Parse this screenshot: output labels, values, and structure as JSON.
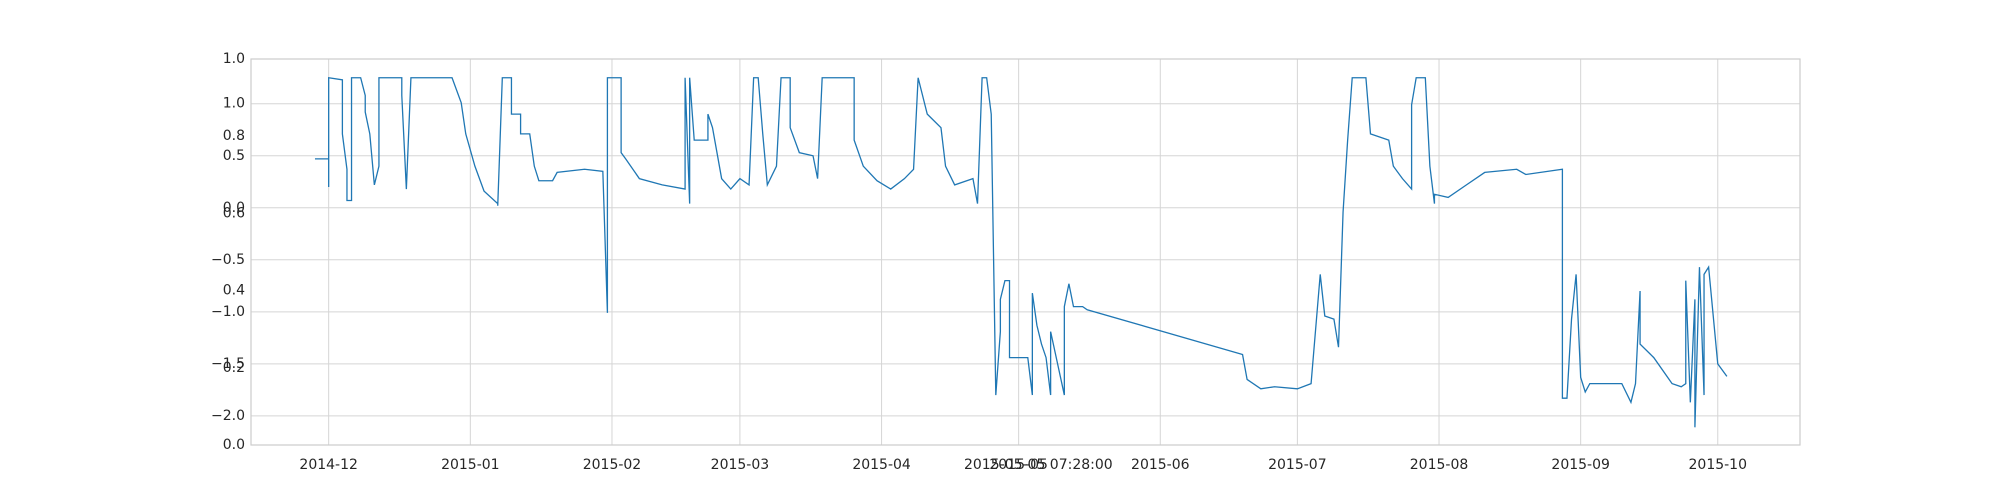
{
  "chart_data": [
    {
      "type": "line",
      "color": "#1f77b4",
      "grid": true,
      "xlim": [
        "2014-11-14",
        "2015-10-19"
      ],
      "xticks": [
        {
          "value": "2014-12-01",
          "label": "2014-12"
        },
        {
          "value": "2015-01-01",
          "label": "2015-01"
        },
        {
          "value": "2015-02-01",
          "label": "2015-02"
        },
        {
          "value": "2015-03-01",
          "label": "2015-03"
        },
        {
          "value": "2015-04-01",
          "label": "2015-04"
        },
        {
          "value": "2015-05-01",
          "label": "2015-05"
        },
        {
          "value": "2015-06-01",
          "label": "2015-06"
        },
        {
          "value": "2015-07-01",
          "label": "2015-07"
        },
        {
          "value": "2015-08-01",
          "label": "2015-08"
        },
        {
          "value": "2015-09-01",
          "label": "2015-09"
        },
        {
          "value": "2015-10-01",
          "label": "2015-10"
        }
      ],
      "ylim": [
        -2.28,
        1.43
      ],
      "yticks": [
        {
          "value": -2,
          "label": "−2.0"
        },
        {
          "value": -1.5,
          "label": "−1.5"
        },
        {
          "value": -1,
          "label": "−1.0"
        },
        {
          "value": -0.5,
          "label": "−0.5"
        },
        {
          "value": 0,
          "label": "0.0"
        },
        0.5,
        {
          "value": 1,
          "label": "1.0"
        }
      ],
      "x": [
        "2014-11-28",
        "2014-12-01",
        "2014-12-01",
        "2014-12-01",
        "2014-12-04",
        "2014-12-04",
        "2014-12-05",
        "2014-12-05",
        "2014-12-06",
        "2014-12-06",
        "2014-12-08",
        "2014-12-09",
        "2014-12-09",
        "2014-12-10",
        "2014-12-11",
        "2014-12-12",
        "2014-12-12",
        "2014-12-17",
        "2014-12-17",
        "2014-12-18",
        "2014-12-19",
        "2014-12-28",
        "2014-12-30",
        "2014-12-31",
        "2015-01-02",
        "2015-01-04",
        "2015-01-07",
        "2015-01-07",
        "2015-01-08",
        "2015-01-10",
        "2015-01-10",
        "2015-01-12",
        "2015-01-12",
        "2015-01-14",
        "2015-01-15",
        "2015-01-16",
        "2015-01-19",
        "2015-01-20",
        "2015-01-26",
        "2015-01-30",
        "2015-01-31",
        "2015-01-31",
        "2015-01-31",
        "2015-02-03",
        "2015-02-03",
        "2015-02-04",
        "2015-02-07",
        "2015-02-12",
        "2015-02-17",
        "2015-02-17",
        "2015-02-18",
        "2015-02-18",
        "2015-02-19",
        "2015-02-22",
        "2015-02-22",
        "2015-02-23",
        "2015-02-25",
        "2015-02-27",
        "2015-03-01",
        "2015-03-03",
        "2015-03-04",
        "2015-03-05",
        "2015-03-06",
        "2015-03-07",
        "2015-03-09",
        "2015-03-10",
        "2015-03-12",
        "2015-03-12",
        "2015-03-14",
        "2015-03-17",
        "2015-03-18",
        "2015-03-19",
        "2015-03-26",
        "2015-03-26",
        "2015-03-28",
        "2015-03-31",
        "2015-04-03",
        "2015-04-06",
        "2015-04-08",
        "2015-04-09",
        "2015-04-11",
        "2015-04-14",
        "2015-04-15",
        "2015-04-17",
        "2015-04-21",
        "2015-04-22",
        "2015-04-23",
        "2015-04-24",
        "2015-04-25",
        "2015-04-26",
        "2015-04-26",
        "2015-04-27",
        "2015-04-27",
        "2015-04-28",
        "2015-04-29",
        "2015-04-29",
        "2015-05-03",
        "2015-05-04",
        "2015-05-04",
        "2015-05-04",
        "2015-05-05",
        "2015-05-06",
        "2015-05-07",
        "2015-05-08",
        "2015-05-08",
        "2015-05-11",
        "2015-05-11",
        "2015-05-12",
        "2015-05-13",
        "2015-05-15",
        "2015-05-16",
        "2015-06-19",
        "2015-06-20",
        "2015-06-23",
        "2015-06-26",
        "2015-07-01",
        "2015-07-04",
        "2015-07-06",
        "2015-07-07",
        "2015-07-09",
        "2015-07-10",
        "2015-07-11",
        "2015-07-12",
        "2015-07-13",
        "2015-07-16",
        "2015-07-17",
        "2015-07-21",
        "2015-07-22",
        "2015-07-24",
        "2015-07-26",
        "2015-07-26",
        "2015-07-27",
        "2015-07-29",
        "2015-07-30",
        "2015-07-31",
        "2015-07-31",
        "2015-08-03",
        "2015-08-07",
        "2015-08-11",
        "2015-08-18",
        "2015-08-20",
        "2015-08-28",
        "2015-08-28",
        "2015-08-29",
        "2015-08-30",
        "2015-08-31",
        "2015-09-01",
        "2015-09-02",
        "2015-09-03",
        "2015-09-10",
        "2015-09-12",
        "2015-09-13",
        "2015-09-14",
        "2015-09-14",
        "2015-09-17",
        "2015-09-21",
        "2015-09-23",
        "2015-09-24",
        "2015-09-24",
        "2015-09-25",
        "2015-09-26",
        "2015-09-26",
        "2015-09-27",
        "2015-09-28",
        "2015-09-28",
        "2015-09-29",
        "2015-10-01",
        "2015-10-03"
      ],
      "values": [
        0.47,
        0.47,
        0.2,
        1.25,
        1.23,
        0.71,
        0.37,
        0.07,
        0.07,
        1.25,
        1.25,
        1.08,
        0.92,
        0.71,
        0.22,
        0.4,
        1.25,
        1.25,
        1.08,
        0.18,
        1.25,
        1.25,
        1.01,
        0.71,
        0.4,
        0.16,
        0.04,
        0.02,
        1.25,
        1.25,
        0.9,
        0.9,
        0.71,
        0.71,
        0.4,
        0.26,
        0.26,
        0.34,
        0.37,
        0.35,
        -1.01,
        0.35,
        1.25,
        1.25,
        0.53,
        0.47,
        0.28,
        0.22,
        0.18,
        1.25,
        0.04,
        1.25,
        0.65,
        0.65,
        0.9,
        0.77,
        0.28,
        0.18,
        0.28,
        0.22,
        1.25,
        1.25,
        0.71,
        0.22,
        0.4,
        1.25,
        1.25,
        0.77,
        0.53,
        0.5,
        0.28,
        1.25,
        1.25,
        0.65,
        0.4,
        0.26,
        0.18,
        0.28,
        0.37,
        1.25,
        0.9,
        0.77,
        0.4,
        0.22,
        0.28,
        0.04,
        1.25,
        1.25,
        0.9,
        -1.8,
        -1.8,
        -1.19,
        -0.88,
        -0.7,
        -0.7,
        -1.44,
        -1.44,
        -1.8,
        -1.26,
        -0.82,
        -1.13,
        -1.31,
        -1.44,
        -1.8,
        -1.19,
        -1.8,
        -0.95,
        -0.73,
        -0.95,
        -0.95,
        -0.98,
        -1.41,
        -1.65,
        -1.74,
        -1.72,
        -1.74,
        -1.69,
        -0.64,
        -1.04,
        -1.07,
        -1.34,
        -0.04,
        0.65,
        1.25,
        1.25,
        0.71,
        0.65,
        0.4,
        0.28,
        0.18,
        0.99,
        1.25,
        1.25,
        0.4,
        0.04,
        0.13,
        0.1,
        0.22,
        0.34,
        0.37,
        0.32,
        0.37,
        -1.83,
        -1.83,
        -1.07,
        -0.64,
        -1.63,
        -1.77,
        -1.69,
        -1.69,
        -1.87,
        -1.69,
        -0.8,
        -1.31,
        -1.44,
        -1.69,
        -1.72,
        -1.69,
        -0.7,
        -1.87,
        -0.88,
        -2.11,
        -0.57,
        -1.8,
        -0.64,
        -0.57,
        -1.5,
        -1.62
      ]
    },
    {
      "type": "line",
      "xlim": [
        "2014-11-14",
        "2015-10-19"
      ],
      "xticks": [
        {
          "value": "2015-05-05T07:28:00",
          "label": "2015-05-05 07:28:00"
        }
      ],
      "ylim": [
        0,
        1
      ],
      "yticks": [
        {
          "value": 0,
          "label": "0.0"
        },
        0.2,
        0.4,
        0.6,
        0.8,
        {
          "value": 1,
          "label": "1.0"
        }
      ]
    }
  ]
}
